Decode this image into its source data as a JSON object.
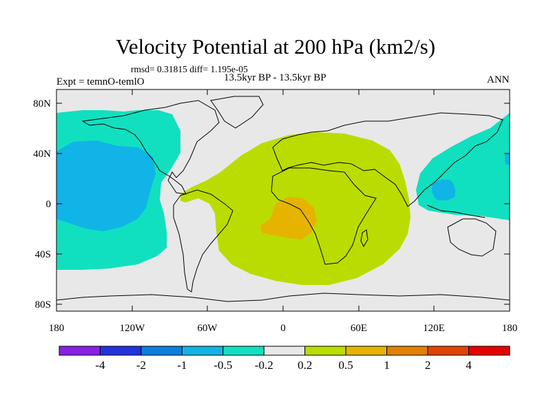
{
  "title": "Velocity Potential at 200 hPa (km2/s)",
  "stats_line": "rmsd= 0.31815 diff= 1.195e-05",
  "period_label": "13.5kyr BP - 13.5kyr BP",
  "experiment_label": "Expt = temnO-temlO",
  "season_label": "ANN",
  "map": {
    "projection": "cylindrical-equidistant",
    "lat_ticks": [
      "80N",
      "40N",
      "0",
      "40S",
      "80S"
    ],
    "lon_ticks": [
      "180",
      "120W",
      "60W",
      "0",
      "60E",
      "120E",
      "180"
    ]
  },
  "colorbar": {
    "labels": [
      "-4",
      "-2",
      "-1",
      "-0.5",
      "-0.2",
      "0.2",
      "0.5",
      "1",
      "2",
      "4"
    ],
    "colors": [
      "#8a1fe6",
      "#2233dd",
      "#0a80dc",
      "#10b4e6",
      "#10e0c0",
      "#e8e8e8",
      "#bbdc00",
      "#e6b400",
      "#e48000",
      "#e04400",
      "#e80000"
    ]
  },
  "colors": {
    "neutral": "#e8e8e8",
    "neg_0_2": "#10e0c0",
    "neg_0_5": "#10b4e6",
    "pos_0_2": "#bbdc00",
    "pos_0_5": "#e6b400"
  }
}
